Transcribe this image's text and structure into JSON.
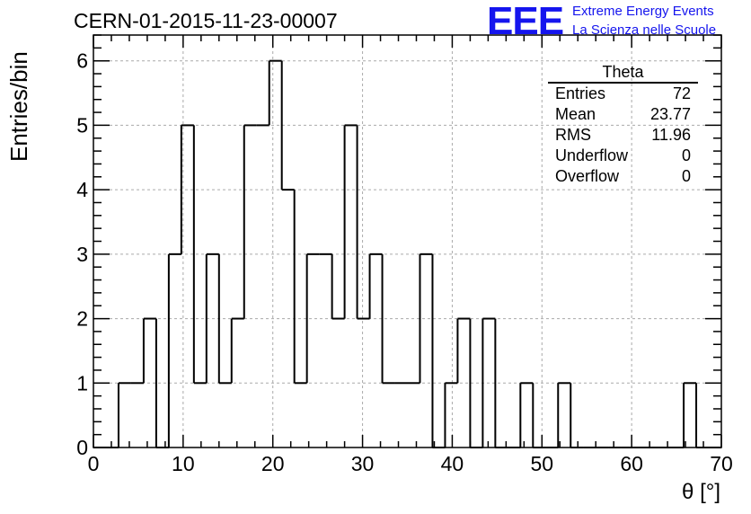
{
  "title": "CERN-01-2015-11-23-00007",
  "logo": {
    "mark": "EEE",
    "line1": "Extreme Energy Events",
    "line2": "La Scienza nelle Scuole",
    "color": "#1515ee"
  },
  "stats": {
    "title": "Theta",
    "rows": [
      {
        "label": "Entries",
        "value": "72"
      },
      {
        "label": "Mean",
        "value": "23.77"
      },
      {
        "label": "RMS",
        "value": "11.96"
      },
      {
        "label": "Underflow",
        "value": "0"
      },
      {
        "label": "Overflow",
        "value": "0"
      }
    ]
  },
  "chart_data": {
    "type": "histogram",
    "title": "CERN-01-2015-11-23-00007",
    "xlabel": "θ [°]",
    "ylabel": "Entries/bin",
    "xlim": [
      0,
      70
    ],
    "ylim": [
      0,
      6.4
    ],
    "grid": true,
    "bin_width": 1.4,
    "bin_edges_start": 0,
    "values": [
      0,
      0,
      1,
      1,
      2,
      0,
      3,
      5,
      1,
      3,
      1,
      2,
      5,
      5,
      6,
      4,
      1,
      3,
      3,
      2,
      5,
      2,
      3,
      1,
      1,
      1,
      3,
      0,
      1,
      2,
      0,
      2,
      0,
      0,
      1,
      0,
      0,
      1,
      0,
      0,
      0,
      0,
      0,
      0,
      0,
      0,
      0,
      1,
      0,
      0
    ],
    "xticks": [
      0,
      10,
      20,
      30,
      40,
      50,
      60,
      70
    ],
    "yticks": [
      0,
      1,
      2,
      3,
      4,
      5,
      6
    ]
  }
}
